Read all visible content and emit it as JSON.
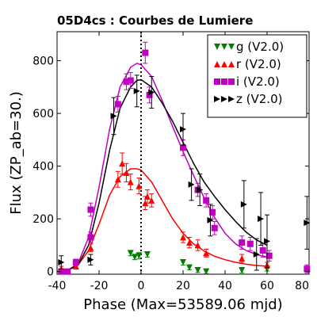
{
  "chart_data": {
    "type": "scatter",
    "title": "05D4cs : Courbes de Lumiere",
    "xlabel": "Phase (Max=53589.06 mjd)",
    "ylabel": "Flux (ZP_ab=30.)",
    "xlim": [
      -40,
      80
    ],
    "ylim": [
      -10,
      910
    ],
    "xticks": [
      -40,
      -20,
      0,
      20,
      40,
      60,
      80
    ],
    "yticks": [
      0,
      200,
      400,
      600,
      800
    ],
    "xtick_labels": [
      "-40",
      "-20",
      "0",
      "20",
      "40",
      "60",
      "80"
    ],
    "ytick_labels": [
      "0",
      "200",
      "400",
      "600",
      "800"
    ],
    "max_line_x": 0,
    "legend_position": "top-right",
    "series": [
      {
        "name": "g (V2.0)",
        "color": "#008000",
        "marker": "triangle-down",
        "points": [
          {
            "x": -5,
            "y": 70,
            "err": 10
          },
          {
            "x": -3,
            "y": 55,
            "err": 10
          },
          {
            "x": -1,
            "y": 60,
            "err": 12
          },
          {
            "x": 3,
            "y": 65,
            "err": 10
          },
          {
            "x": 20,
            "y": 35,
            "err": 10
          },
          {
            "x": 23,
            "y": 15,
            "err": 8
          },
          {
            "x": 27,
            "y": 5,
            "err": 8
          },
          {
            "x": 31,
            "y": 0,
            "err": 8
          },
          {
            "x": 48,
            "y": 5,
            "err": 10
          },
          {
            "x": 60,
            "y": 10,
            "err": 8
          }
        ],
        "curve": []
      },
      {
        "name": "r (V2.0)",
        "color": "#ff0000",
        "marker": "triangle-up",
        "points": [
          {
            "x": -38,
            "y": 10,
            "err": 10
          },
          {
            "x": -31,
            "y": 20,
            "err": 10
          },
          {
            "x": -24,
            "y": 90,
            "err": 15
          },
          {
            "x": -11,
            "y": 350,
            "err": 30
          },
          {
            "x": -9,
            "y": 410,
            "err": 40
          },
          {
            "x": -7,
            "y": 375,
            "err": 35
          },
          {
            "x": -5,
            "y": 340,
            "err": 30
          },
          {
            "x": -1,
            "y": 325,
            "err": 30
          },
          {
            "x": 2,
            "y": 260,
            "err": 25
          },
          {
            "x": 3,
            "y": 285,
            "err": 25
          },
          {
            "x": 5,
            "y": 270,
            "err": 25
          },
          {
            "x": 20,
            "y": 130,
            "err": 20
          },
          {
            "x": 23,
            "y": 110,
            "err": 20
          },
          {
            "x": 27,
            "y": 100,
            "err": 20
          },
          {
            "x": 31,
            "y": 70,
            "err": 15
          },
          {
            "x": 48,
            "y": 50,
            "err": 15
          },
          {
            "x": 60,
            "y": 25,
            "err": 10
          }
        ],
        "curve": [
          {
            "x": -40,
            "y": 0
          },
          {
            "x": -35,
            "y": 5
          },
          {
            "x": -30,
            "y": 25
          },
          {
            "x": -25,
            "y": 80
          },
          {
            "x": -20,
            "y": 180
          },
          {
            "x": -15,
            "y": 290
          },
          {
            "x": -10,
            "y": 360
          },
          {
            "x": -5,
            "y": 390
          },
          {
            "x": -2,
            "y": 390
          },
          {
            "x": 0,
            "y": 385
          },
          {
            "x": 5,
            "y": 340
          },
          {
            "x": 10,
            "y": 270
          },
          {
            "x": 15,
            "y": 200
          },
          {
            "x": 20,
            "y": 145
          },
          {
            "x": 25,
            "y": 105
          },
          {
            "x": 30,
            "y": 78
          },
          {
            "x": 35,
            "y": 58
          },
          {
            "x": 40,
            "y": 45
          },
          {
            "x": 45,
            "y": 35
          },
          {
            "x": 50,
            "y": 28
          },
          {
            "x": 55,
            "y": 23
          },
          {
            "x": 60,
            "y": 20
          }
        ]
      },
      {
        "name": "i (V2.0)",
        "color": "#bf00bf",
        "marker": "square",
        "points": [
          {
            "x": -38,
            "y": 0,
            "err": 10
          },
          {
            "x": -35,
            "y": 0,
            "err": 10
          },
          {
            "x": -31,
            "y": 35,
            "err": 12
          },
          {
            "x": -24,
            "y": 130,
            "err": 20
          },
          {
            "x": -24,
            "y": 235,
            "err": 25
          },
          {
            "x": -11,
            "y": 635,
            "err": 30
          },
          {
            "x": -7,
            "y": 720,
            "err": 30
          },
          {
            "x": -5,
            "y": 725,
            "err": 30
          },
          {
            "x": 2,
            "y": 830,
            "err": 40
          },
          {
            "x": 4,
            "y": 670,
            "err": 30
          },
          {
            "x": 20,
            "y": 470,
            "err": 30
          },
          {
            "x": 27,
            "y": 310,
            "err": 25
          },
          {
            "x": 31,
            "y": 270,
            "err": 25
          },
          {
            "x": 34,
            "y": 225,
            "err": 25
          },
          {
            "x": 35,
            "y": 165,
            "err": 25
          },
          {
            "x": 48,
            "y": 110,
            "err": 25
          },
          {
            "x": 52,
            "y": 105,
            "err": 25
          },
          {
            "x": 58,
            "y": 80,
            "err": 25
          },
          {
            "x": 61,
            "y": 60,
            "err": 20
          },
          {
            "x": 79,
            "y": 10,
            "err": 15
          }
        ],
        "curve": [
          {
            "x": -40,
            "y": 0
          },
          {
            "x": -35,
            "y": 5
          },
          {
            "x": -30,
            "y": 30
          },
          {
            "x": -25,
            "y": 130
          },
          {
            "x": -20,
            "y": 320
          },
          {
            "x": -15,
            "y": 540
          },
          {
            "x": -10,
            "y": 700
          },
          {
            "x": -5,
            "y": 775
          },
          {
            "x": -2,
            "y": 790
          },
          {
            "x": 0,
            "y": 785
          },
          {
            "x": 5,
            "y": 740
          },
          {
            "x": 10,
            "y": 650
          },
          {
            "x": 15,
            "y": 550
          },
          {
            "x": 20,
            "y": 455
          },
          {
            "x": 25,
            "y": 365
          },
          {
            "x": 30,
            "y": 280
          },
          {
            "x": 35,
            "y": 205
          },
          {
            "x": 40,
            "y": 145
          },
          {
            "x": 45,
            "y": 105
          },
          {
            "x": 50,
            "y": 80
          },
          {
            "x": 55,
            "y": 65
          },
          {
            "x": 60,
            "y": 55
          }
        ]
      },
      {
        "name": "z (V2.0)",
        "color": "#000000",
        "marker": "triangle-right",
        "points": [
          {
            "x": -38,
            "y": 35,
            "err": 25
          },
          {
            "x": -24,
            "y": 45,
            "err": 20
          },
          {
            "x": -13,
            "y": 590,
            "err": 70
          },
          {
            "x": -2,
            "y": 685,
            "err": 60
          },
          {
            "x": 5,
            "y": 680,
            "err": 60
          },
          {
            "x": 20,
            "y": 540,
            "err": 60
          },
          {
            "x": 24,
            "y": 330,
            "err": 60
          },
          {
            "x": 28,
            "y": 310,
            "err": 60
          },
          {
            "x": 33,
            "y": 195,
            "err": 60
          },
          {
            "x": 49,
            "y": 255,
            "err": 90
          },
          {
            "x": 55,
            "y": 65,
            "err": 60
          },
          {
            "x": 57,
            "y": 200,
            "err": 100
          },
          {
            "x": 60,
            "y": 115,
            "err": 100
          },
          {
            "x": 79,
            "y": 185,
            "err": 100
          }
        ],
        "curve": [
          {
            "x": -40,
            "y": 0
          },
          {
            "x": -35,
            "y": 5
          },
          {
            "x": -30,
            "y": 25
          },
          {
            "x": -25,
            "y": 100
          },
          {
            "x": -20,
            "y": 260
          },
          {
            "x": -15,
            "y": 460
          },
          {
            "x": -10,
            "y": 620
          },
          {
            "x": -5,
            "y": 700
          },
          {
            "x": -2,
            "y": 725
          },
          {
            "x": 0,
            "y": 728
          },
          {
            "x": 5,
            "y": 700
          },
          {
            "x": 10,
            "y": 640
          },
          {
            "x": 15,
            "y": 570
          },
          {
            "x": 20,
            "y": 490
          },
          {
            "x": 25,
            "y": 410
          },
          {
            "x": 30,
            "y": 340
          },
          {
            "x": 35,
            "y": 285
          },
          {
            "x": 40,
            "y": 235
          },
          {
            "x": 45,
            "y": 190
          },
          {
            "x": 50,
            "y": 150
          },
          {
            "x": 55,
            "y": 120
          },
          {
            "x": 60,
            "y": 100
          }
        ]
      }
    ]
  }
}
